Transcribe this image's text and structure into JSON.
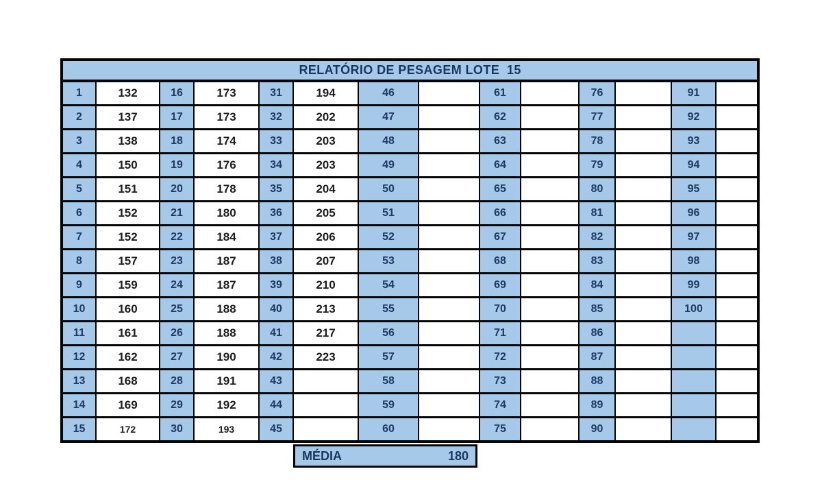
{
  "title": "RELATÓRIO DE PESAGEM LOTE  15",
  "pairs": [
    {
      "labels": [
        "1",
        "2",
        "3",
        "4",
        "5",
        "6",
        "7",
        "8",
        "9",
        "10",
        "11",
        "12",
        "13",
        "14",
        "15"
      ],
      "values": [
        "132",
        "137",
        "138",
        "150",
        "151",
        "152",
        "152",
        "157",
        "159",
        "160",
        "161",
        "162",
        "168",
        "169",
        "172"
      ]
    },
    {
      "labels": [
        "16",
        "17",
        "18",
        "19",
        "20",
        "21",
        "22",
        "23",
        "24",
        "25",
        "26",
        "27",
        "28",
        "29",
        "30"
      ],
      "values": [
        "173",
        "173",
        "174",
        "176",
        "178",
        "180",
        "184",
        "187",
        "187",
        "188",
        "188",
        "190",
        "191",
        "192",
        "193"
      ]
    },
    {
      "labels": [
        "31",
        "32",
        "33",
        "34",
        "35",
        "36",
        "37",
        "38",
        "39",
        "40",
        "41",
        "42",
        "43",
        "44",
        "45"
      ],
      "values": [
        "194",
        "202",
        "203",
        "203",
        "204",
        "205",
        "206",
        "207",
        "210",
        "213",
        "217",
        "223",
        "",
        "",
        ""
      ]
    },
    {
      "labels": [
        "46",
        "47",
        "48",
        "49",
        "50",
        "51",
        "52",
        "53",
        "54",
        "55",
        "56",
        "57",
        "58",
        "59",
        "60"
      ],
      "values": [
        "",
        "",
        "",
        "",
        "",
        "",
        "",
        "",
        "",
        "",
        "",
        "",
        "",
        "",
        ""
      ]
    },
    {
      "labels": [
        "61",
        "62",
        "63",
        "64",
        "65",
        "66",
        "67",
        "68",
        "69",
        "70",
        "71",
        "72",
        "73",
        "74",
        "75"
      ],
      "values": [
        "",
        "",
        "",
        "",
        "",
        "",
        "",
        "",
        "",
        "",
        "",
        "",
        "",
        "",
        ""
      ]
    },
    {
      "labels": [
        "76",
        "77",
        "78",
        "79",
        "80",
        "81",
        "82",
        "83",
        "84",
        "85",
        "86",
        "87",
        "88",
        "89",
        "90"
      ],
      "values": [
        "",
        "",
        "",
        "",
        "",
        "",
        "",
        "",
        "",
        "",
        "",
        "",
        "",
        "",
        ""
      ]
    },
    {
      "labels": [
        "91",
        "92",
        "93",
        "94",
        "95",
        "96",
        "97",
        "98",
        "99",
        "100",
        "",
        "",
        "",
        "",
        ""
      ],
      "values": [
        "",
        "",
        "",
        "",
        "",
        "",
        "",
        "",
        "",
        "",
        "",
        "",
        "",
        "",
        ""
      ]
    }
  ],
  "media": {
    "label": "MÉDIA",
    "value": "180"
  },
  "colors": {
    "cell_blue": "#a6c9e9",
    "text_navy": "#1f3864",
    "grid_black": "#050505",
    "value_text": "#1c1c1c"
  }
}
